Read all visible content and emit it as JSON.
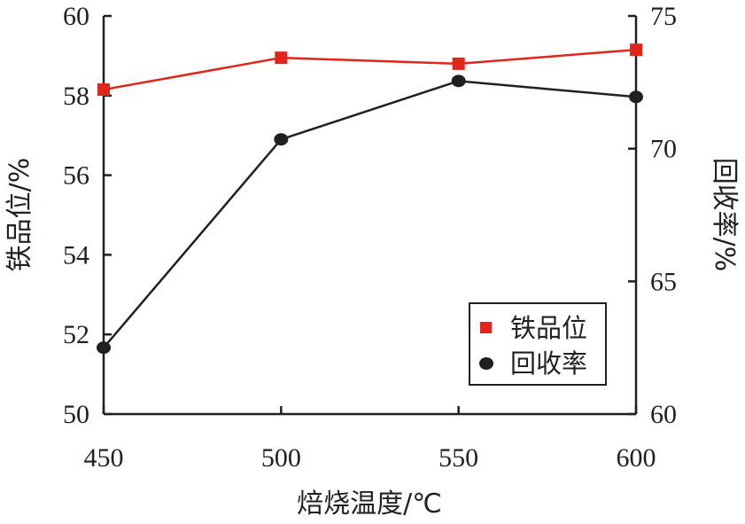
{
  "chart_data": {
    "type": "line",
    "x": [
      450,
      500,
      550,
      600
    ],
    "xlabel": "焙烧温度/℃",
    "xlim": [
      450,
      600
    ],
    "xticks": [
      "450",
      "500",
      "550",
      "600"
    ],
    "y_left": {
      "label": "铁品位/%",
      "lim": [
        50,
        60
      ],
      "ticks": [
        "50",
        "52",
        "54",
        "56",
        "58",
        "60"
      ]
    },
    "y_right": {
      "label": "回收率/%",
      "lim": [
        60,
        75
      ],
      "ticks": [
        "60",
        "65",
        "70",
        "75"
      ]
    },
    "series": [
      {
        "name": "铁品位",
        "axis": "left",
        "marker": "square",
        "color": "#e0261b",
        "values": [
          58.15,
          58.95,
          58.8,
          59.15
        ]
      },
      {
        "name": "回收率",
        "axis": "right",
        "marker": "circle",
        "color": "#231f20",
        "values": [
          62.5,
          70.35,
          72.55,
          71.95
        ]
      }
    ],
    "legend": {
      "position": "bottom-right",
      "entries": [
        "铁品位",
        "回收率"
      ]
    },
    "grid": false
  }
}
